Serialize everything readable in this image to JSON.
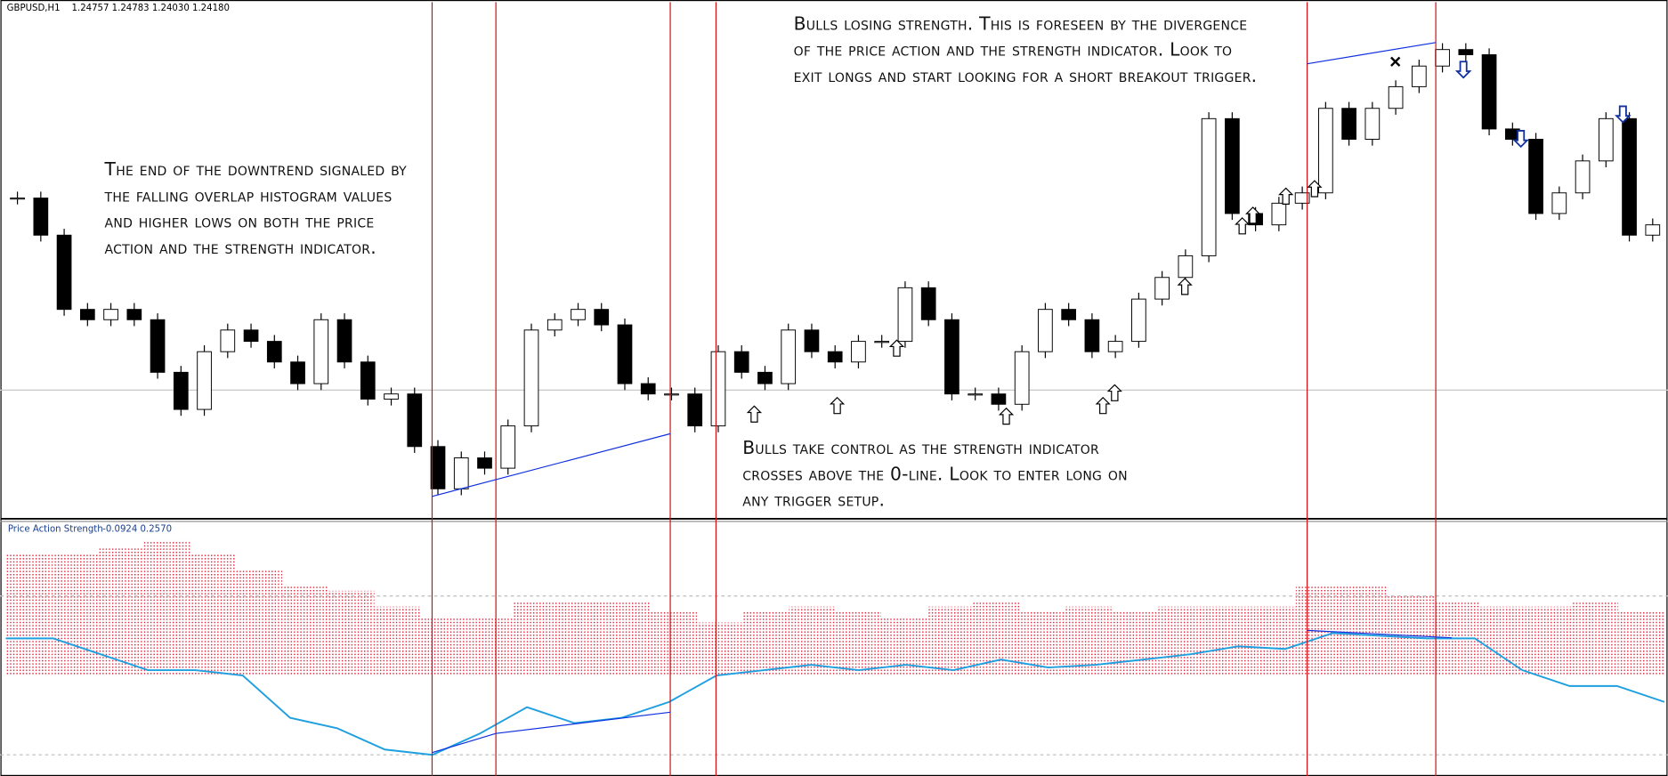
{
  "header": {
    "symbol": "GBPUSD,H1",
    "ohlc": "1.24757 1.24783 1.24030 1.24180"
  },
  "indicator": {
    "name": "Price Action Strength",
    "readout": "-0.0924 0.2570"
  },
  "annotations": [
    {
      "lines": [
        "The end of the downtrend signaled by",
        "the falling overlap histogram values",
        "and higher lows on both the price",
        "action and the strength indicator."
      ]
    },
    {
      "lines": [
        "Bulls losing strength. This is foreseen by the divergence",
        "of the price action and the strength indicator. Look to",
        "exit longs and start looking for a short breakout trigger."
      ]
    },
    {
      "lines": [
        "Bulls take control as the strength indicator",
        "crosses above the 0-line. Look to enter long on",
        "any trigger setup."
      ]
    }
  ],
  "price": {
    "ylim": [
      1.213,
      1.263
    ],
    "color_up": "#ffffff",
    "color_down": "#000000",
    "close": [
      1.244,
      1.2404,
      1.2332,
      1.2322,
      1.2332,
      1.2322,
      1.2271,
      1.2235,
      1.2291,
      1.2312,
      1.2301,
      1.2281,
      1.226,
      1.2322,
      1.2281,
      1.2245,
      1.225,
      1.2199,
      1.2158,
      1.2188,
      1.2178,
      1.2219,
      1.2312,
      1.2322,
      1.2332,
      1.2317,
      1.226,
      1.225,
      1.225,
      1.2219,
      1.2291,
      1.2271,
      1.226,
      1.2312,
      1.2291,
      1.2281,
      1.2301,
      1.2301,
      1.2353,
      1.2322,
      1.225,
      1.225,
      1.224,
      1.2291,
      1.2332,
      1.2322,
      1.2291,
      1.2301,
      1.2342,
      1.2363,
      1.2384,
      1.2517,
      1.2425,
      1.2414,
      1.2435,
      1.2445,
      1.2527,
      1.2497,
      1.2527,
      1.2548,
      1.2568,
      1.2584,
      1.2579,
      1.2507,
      1.2497,
      1.2425,
      1.2445,
      1.2476,
      1.2517,
      1.2404,
      1.2414
    ]
  },
  "strength": {
    "ylim": [
      -0.38,
      0.58
    ],
    "levels": [
      -0.3,
      0.3
    ],
    "histogram_color": "#e0203a",
    "line_color": "#1ea0e0",
    "histogram": [
      0.46,
      0.46,
      0.48,
      0.51,
      0.46,
      0.4,
      0.34,
      0.32,
      0.26,
      0.22,
      0.22,
      0.28,
      0.28,
      0.28,
      0.24,
      0.2,
      0.24,
      0.26,
      0.24,
      0.22,
      0.26,
      0.28,
      0.24,
      0.26,
      0.24,
      0.26,
      0.26,
      0.26,
      0.34,
      0.34,
      0.3,
      0.28,
      0.26,
      0.26,
      0.28,
      0.24
    ],
    "line": [
      0.14,
      0.14,
      0.08,
      0.02,
      0.02,
      0.0,
      -0.16,
      -0.2,
      -0.28,
      -0.3,
      -0.22,
      -0.12,
      -0.18,
      -0.16,
      -0.1,
      0.0,
      0.02,
      0.04,
      0.02,
      0.04,
      0.02,
      0.06,
      0.03,
      0.04,
      0.06,
      0.08,
      0.11,
      0.1,
      0.16,
      0.15,
      0.14,
      0.14,
      0.02,
      -0.04,
      -0.04,
      -0.1
    ]
  }
}
